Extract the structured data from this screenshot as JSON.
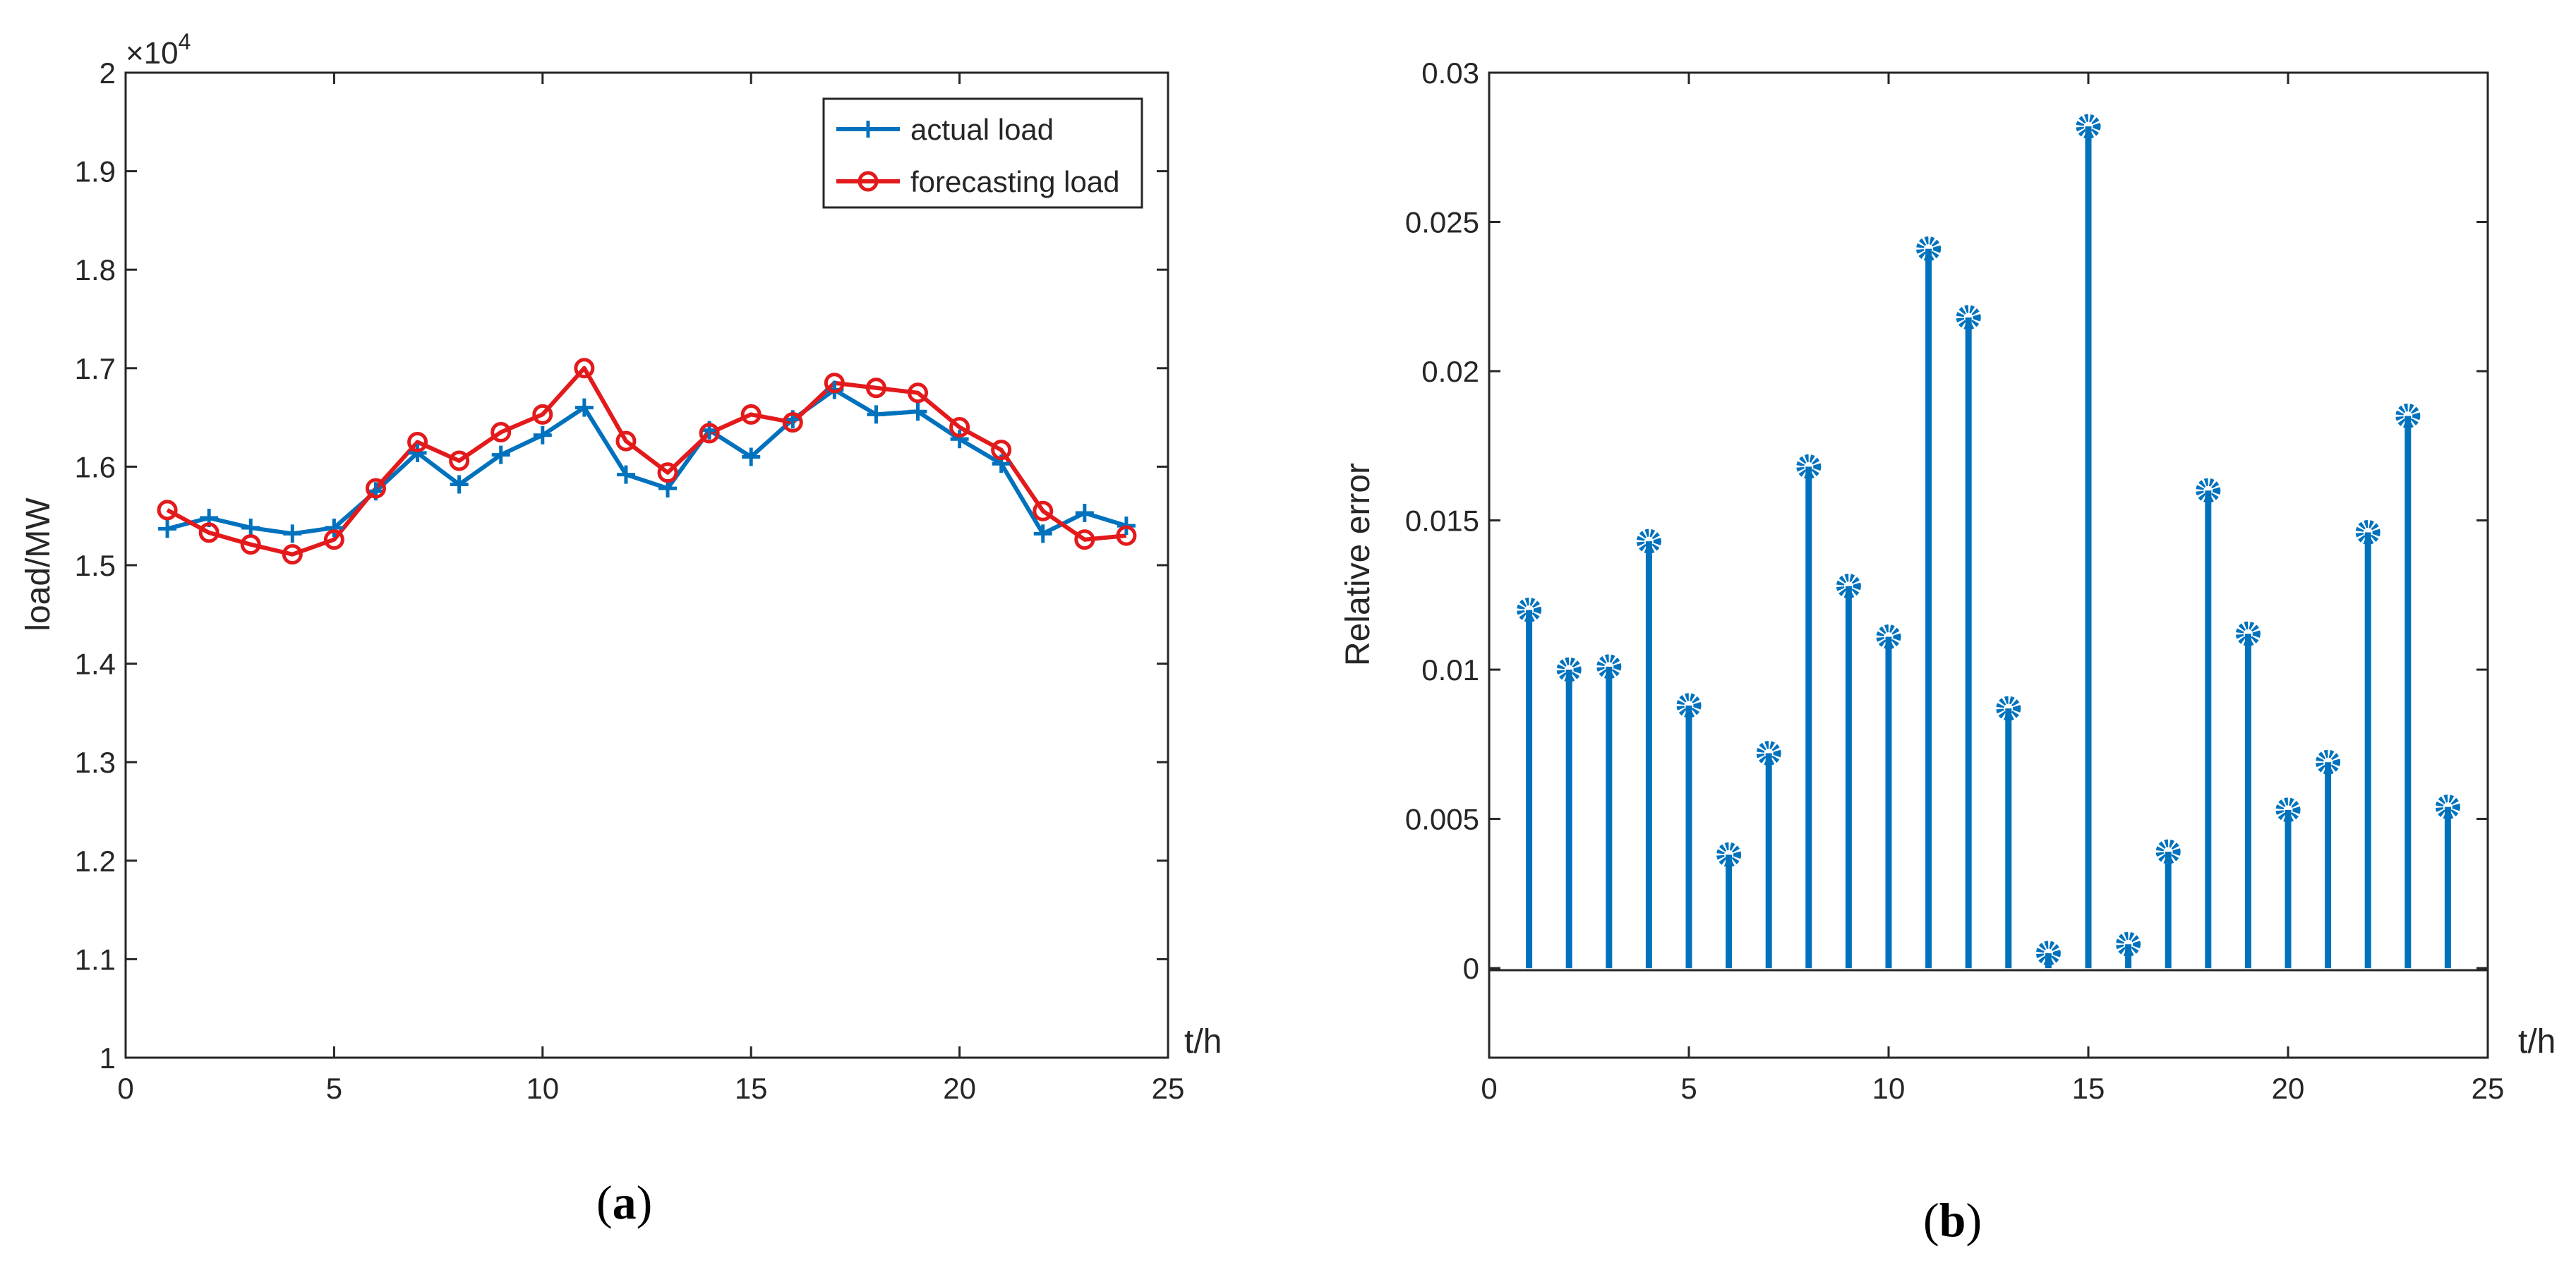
{
  "captions": {
    "a_open": "(",
    "a_letter": "a",
    "a_close": ")",
    "b_open": "(",
    "b_letter": "b",
    "b_close": ")"
  },
  "chart_data": [
    {
      "id": "a",
      "type": "line",
      "xlabel": "t/h",
      "ylabel": "load/MW",
      "xlim": [
        0,
        25
      ],
      "ylim": [
        1,
        2
      ],
      "xticks": [
        0,
        5,
        10,
        15,
        20,
        25
      ],
      "xtick_labels": [
        "0",
        "5",
        "10",
        "15",
        "20",
        "25"
      ],
      "yticks": [
        1,
        1.1,
        1.2,
        1.3,
        1.4,
        1.5,
        1.6,
        1.7,
        1.8,
        1.9,
        2
      ],
      "ytick_labels": [
        "1",
        "1.1",
        "1.2",
        "1.3",
        "1.4",
        "1.5",
        "1.6",
        "1.7",
        "1.8",
        "1.9",
        "2"
      ],
      "y_multiplier": {
        "prefix": "×10",
        "exponent": "4"
      },
      "legend_position": "top-right",
      "x": [
        1,
        2,
        3,
        4,
        5,
        6,
        7,
        8,
        9,
        10,
        11,
        12,
        13,
        14,
        15,
        16,
        17,
        18,
        19,
        20,
        21,
        22,
        23,
        24
      ],
      "series": [
        {
          "name": "actual load",
          "color": "#0072BD",
          "marker": "plus",
          "values": [
            1.537,
            1.548,
            1.538,
            1.532,
            1.538,
            1.575,
            1.614,
            1.582,
            1.612,
            1.632,
            1.66,
            1.592,
            1.578,
            1.637,
            1.61,
            1.648,
            1.678,
            1.653,
            1.656,
            1.628,
            1.603,
            1.532,
            1.553,
            1.54
          ]
        },
        {
          "name": "forecasting load",
          "color": "#E31A1C",
          "marker": "circle",
          "values": [
            1.556,
            1.533,
            1.521,
            1.511,
            1.526,
            1.578,
            1.625,
            1.606,
            1.635,
            1.653,
            1.7,
            1.626,
            1.594,
            1.634,
            1.653,
            1.645,
            1.685,
            1.68,
            1.675,
            1.64,
            1.617,
            1.555,
            1.526,
            1.53
          ]
        }
      ]
    },
    {
      "id": "b",
      "type": "stem",
      "xlabel": "t/h",
      "ylabel": "Relative error",
      "xlim": [
        0,
        25
      ],
      "ylim": [
        -0.003,
        0.03
      ],
      "xticks": [
        0,
        5,
        10,
        15,
        20,
        25
      ],
      "xtick_labels": [
        "0",
        "5",
        "10",
        "15",
        "20",
        "25"
      ],
      "yticks": [
        0,
        0.005,
        0.01,
        0.015,
        0.02,
        0.025,
        0.03
      ],
      "ytick_labels": [
        "0",
        "0.005",
        "0.01",
        "0.015",
        "0.02",
        "0.025",
        "0.03"
      ],
      "color": "#0072BD",
      "x": [
        1,
        2,
        3,
        4,
        5,
        6,
        7,
        8,
        9,
        10,
        11,
        12,
        13,
        14,
        15,
        16,
        17,
        18,
        19,
        20,
        21,
        22,
        23,
        24
      ],
      "values": [
        0.012,
        0.01,
        0.0101,
        0.0143,
        0.0088,
        0.0038,
        0.0072,
        0.0168,
        0.0128,
        0.0111,
        0.0241,
        0.0218,
        0.0087,
        0.0005,
        0.0282,
        0.0008,
        0.0039,
        0.016,
        0.0112,
        0.0053,
        0.0069,
        0.0146,
        0.0185,
        0.0054
      ]
    }
  ]
}
